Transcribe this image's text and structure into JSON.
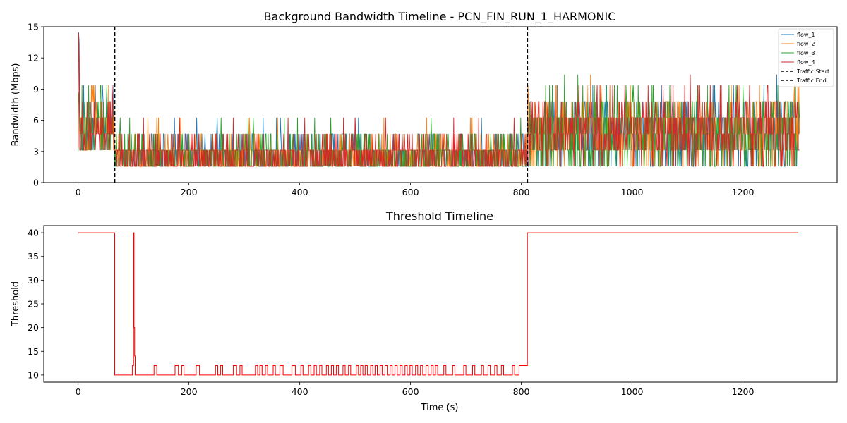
{
  "chart_data": [
    {
      "type": "line",
      "title": "Background Bandwidth Timeline - PCN_FIN_RUN_1_HARMONIC",
      "xlabel": "",
      "ylabel": "Bandwidth (Mbps)",
      "xlim": [
        -62,
        1370
      ],
      "ylim": [
        0,
        15
      ],
      "xticks": [
        0,
        200,
        400,
        600,
        800,
        1000,
        1200
      ],
      "yticks": [
        0,
        3,
        6,
        9,
        12,
        15
      ],
      "legend_position": "top-right",
      "traffic_start": 66,
      "traffic_end": 811,
      "duration": 1302,
      "levels_phase_low": [
        1.56,
        3.12,
        4.69,
        6.25
      ],
      "levels_phase_high": [
        1.56,
        3.12,
        4.69,
        6.25,
        7.81,
        9.38,
        10.4
      ],
      "series": [
        {
          "name": "flow_1",
          "color": "#1f77b4",
          "peak": 15.0
        },
        {
          "name": "flow_2",
          "color": "#ff7f0e",
          "peak": 10.4
        },
        {
          "name": "flow_3",
          "color": "#2ca02c",
          "peak": 10.4
        },
        {
          "name": "flow_4",
          "color": "#d62728",
          "peak": 15.0
        }
      ],
      "vlines": [
        {
          "name": "Traffic Start",
          "x": 66,
          "style": "dashed",
          "color": "#000000"
        },
        {
          "name": "Traffic End",
          "x": 811,
          "style": "dashed",
          "color": "#000000"
        }
      ]
    },
    {
      "type": "line",
      "title": "Threshold Timeline",
      "xlabel": "Time (s)",
      "ylabel": "Threshold",
      "xlim": [
        -62,
        1370
      ],
      "ylim": [
        8.5,
        41.5
      ],
      "xticks": [
        0,
        200,
        400,
        600,
        800,
        1000,
        1200
      ],
      "yticks": [
        10,
        15,
        20,
        25,
        30,
        35,
        40
      ],
      "series": [
        {
          "name": "threshold",
          "color": "#ff0000",
          "points": [
            [
              0,
              40
            ],
            [
              66,
              40
            ],
            [
              66,
              20
            ],
            [
              66,
              10
            ],
            [
              98,
              10
            ],
            [
              98,
              12
            ],
            [
              100,
              12
            ],
            [
              100,
              40
            ],
            [
              101,
              40
            ],
            [
              101,
              20
            ],
            [
              102,
              20
            ],
            [
              102,
              14
            ],
            [
              103,
              14
            ],
            [
              103,
              10
            ],
            [
              137,
              10
            ],
            [
              137,
              12
            ],
            [
              142,
              12
            ],
            [
              142,
              10
            ],
            [
              175,
              10
            ],
            [
              175,
              12
            ],
            [
              181,
              12
            ],
            [
              181,
              10
            ],
            [
              187,
              10
            ],
            [
              187,
              12
            ],
            [
              191,
              12
            ],
            [
              191,
              10
            ],
            [
              213,
              10
            ],
            [
              213,
              12
            ],
            [
              219,
              12
            ],
            [
              219,
              10
            ],
            [
              248,
              10
            ],
            [
              248,
              12
            ],
            [
              252,
              12
            ],
            [
              252,
              10
            ],
            [
              257,
              10
            ],
            [
              257,
              12
            ],
            [
              261,
              12
            ],
            [
              261,
              10
            ],
            [
              280,
              10
            ],
            [
              280,
              12
            ],
            [
              286,
              12
            ],
            [
              286,
              10
            ],
            [
              292,
              10
            ],
            [
              292,
              12
            ],
            [
              296,
              12
            ],
            [
              296,
              10
            ],
            [
              320,
              10
            ],
            [
              320,
              12
            ],
            [
              324,
              12
            ],
            [
              324,
              10
            ],
            [
              328,
              10
            ],
            [
              328,
              12
            ],
            [
              332,
              12
            ],
            [
              332,
              10
            ],
            [
              338,
              10
            ],
            [
              338,
              12
            ],
            [
              342,
              12
            ],
            [
              342,
              10
            ],
            [
              352,
              10
            ],
            [
              352,
              12
            ],
            [
              356,
              12
            ],
            [
              356,
              10
            ],
            [
              364,
              10
            ],
            [
              364,
              12
            ],
            [
              370,
              12
            ],
            [
              370,
              10
            ],
            [
              386,
              10
            ],
            [
              386,
              12
            ],
            [
              392,
              12
            ],
            [
              392,
              10
            ],
            [
              402,
              10
            ],
            [
              402,
              12
            ],
            [
              406,
              12
            ],
            [
              406,
              10
            ],
            [
              416,
              10
            ],
            [
              416,
              12
            ],
            [
              420,
              12
            ],
            [
              420,
              10
            ],
            [
              426,
              10
            ],
            [
              426,
              12
            ],
            [
              430,
              12
            ],
            [
              430,
              10
            ],
            [
              436,
              10
            ],
            [
              436,
              12
            ],
            [
              440,
              12
            ],
            [
              440,
              10
            ],
            [
              448,
              10
            ],
            [
              448,
              12
            ],
            [
              452,
              12
            ],
            [
              452,
              10
            ],
            [
              457,
              10
            ],
            [
              457,
              12
            ],
            [
              461,
              12
            ],
            [
              461,
              10
            ],
            [
              466,
              10
            ],
            [
              466,
              12
            ],
            [
              470,
              12
            ],
            [
              470,
              10
            ],
            [
              478,
              10
            ],
            [
              478,
              12
            ],
            [
              482,
              12
            ],
            [
              482,
              10
            ],
            [
              488,
              10
            ],
            [
              488,
              12
            ],
            [
              492,
              12
            ],
            [
              492,
              10
            ],
            [
              502,
              10
            ],
            [
              502,
              12
            ],
            [
              506,
              12
            ],
            [
              506,
              10
            ],
            [
              510,
              10
            ],
            [
              510,
              12
            ],
            [
              514,
              12
            ],
            [
              514,
              10
            ],
            [
              518,
              10
            ],
            [
              518,
              12
            ],
            [
              522,
              12
            ],
            [
              522,
              10
            ],
            [
              528,
              10
            ],
            [
              528,
              12
            ],
            [
              532,
              12
            ],
            [
              532,
              10
            ],
            [
              536,
              10
            ],
            [
              536,
              12
            ],
            [
              540,
              12
            ],
            [
              540,
              10
            ],
            [
              545,
              10
            ],
            [
              545,
              12
            ],
            [
              549,
              12
            ],
            [
              549,
              10
            ],
            [
              554,
              10
            ],
            [
              554,
              12
            ],
            [
              558,
              12
            ],
            [
              558,
              10
            ],
            [
              563,
              10
            ],
            [
              563,
              12
            ],
            [
              567,
              12
            ],
            [
              567,
              10
            ],
            [
              572,
              10
            ],
            [
              572,
              12
            ],
            [
              576,
              12
            ],
            [
              576,
              10
            ],
            [
              581,
              10
            ],
            [
              581,
              12
            ],
            [
              585,
              12
            ],
            [
              585,
              10
            ],
            [
              590,
              10
            ],
            [
              590,
              12
            ],
            [
              594,
              12
            ],
            [
              594,
              10
            ],
            [
              599,
              10
            ],
            [
              599,
              12
            ],
            [
              603,
              12
            ],
            [
              603,
              10
            ],
            [
              609,
              10
            ],
            [
              609,
              12
            ],
            [
              613,
              12
            ],
            [
              613,
              10
            ],
            [
              618,
              10
            ],
            [
              618,
              12
            ],
            [
              622,
              12
            ],
            [
              622,
              10
            ],
            [
              628,
              10
            ],
            [
              628,
              12
            ],
            [
              632,
              12
            ],
            [
              632,
              10
            ],
            [
              637,
              10
            ],
            [
              637,
              12
            ],
            [
              641,
              12
            ],
            [
              641,
              10
            ],
            [
              645,
              10
            ],
            [
              645,
              12
            ],
            [
              649,
              12
            ],
            [
              649,
              10
            ],
            [
              660,
              10
            ],
            [
              660,
              12
            ],
            [
              664,
              12
            ],
            [
              664,
              10
            ],
            [
              676,
              10
            ],
            [
              676,
              12
            ],
            [
              680,
              12
            ],
            [
              680,
              10
            ],
            [
              696,
              10
            ],
            [
              696,
              12
            ],
            [
              700,
              12
            ],
            [
              700,
              10
            ],
            [
              712,
              10
            ],
            [
              712,
              12
            ],
            [
              716,
              12
            ],
            [
              716,
              10
            ],
            [
              728,
              10
            ],
            [
              728,
              12
            ],
            [
              732,
              12
            ],
            [
              732,
              10
            ],
            [
              740,
              10
            ],
            [
              740,
              12
            ],
            [
              744,
              12
            ],
            [
              744,
              10
            ],
            [
              752,
              10
            ],
            [
              752,
              12
            ],
            [
              756,
              12
            ],
            [
              756,
              10
            ],
            [
              764,
              10
            ],
            [
              764,
              12
            ],
            [
              768,
              12
            ],
            [
              768,
              10
            ],
            [
              784,
              10
            ],
            [
              784,
              12
            ],
            [
              788,
              12
            ],
            [
              788,
              10
            ],
            [
              796,
              10
            ],
            [
              796,
              12
            ],
            [
              811,
              12
            ],
            [
              811,
              40
            ],
            [
              1300,
              40
            ]
          ]
        }
      ]
    }
  ]
}
